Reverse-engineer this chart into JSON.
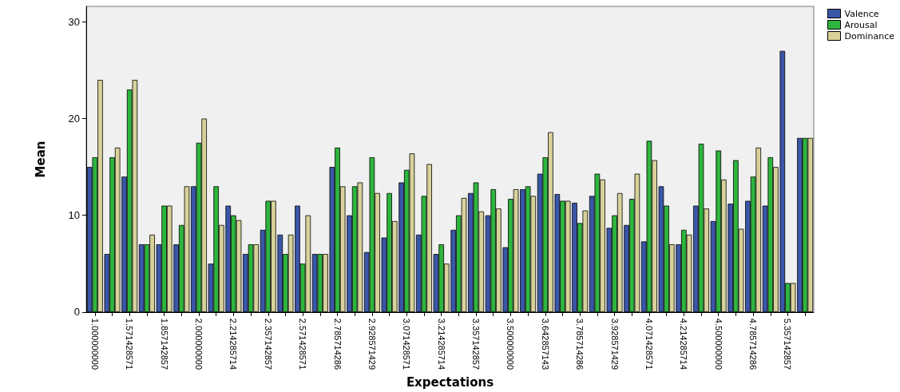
{
  "chart_data": {
    "type": "bar",
    "xlabel": "Expectations",
    "ylabel": "Mean",
    "categories": [
      "1.000000000",
      null,
      "1.571428571",
      null,
      "1.857142857",
      null,
      "2.000000000",
      null,
      "2.214285714",
      null,
      "2.357142857",
      null,
      "2.571428571",
      null,
      "2.785714286",
      null,
      "2.928571429",
      null,
      "3.071428571",
      null,
      "3.214285714",
      null,
      "3.357142857",
      null,
      "3.500000000",
      null,
      "3.642857143",
      null,
      "3.785714286",
      null,
      "3.928571429",
      null,
      "4.071428571",
      null,
      "4.214285714",
      null,
      "4.500000000",
      null,
      "4.785714286",
      null,
      "5.357142857",
      null
    ],
    "series": [
      {
        "name": "Valence",
        "color": "#3a56a8",
        "values": [
          15,
          6,
          14,
          7,
          7,
          7,
          13,
          5,
          11,
          6,
          8.5,
          8,
          11,
          6,
          15,
          10,
          6.2,
          7.7,
          13.4,
          8,
          6,
          8.5,
          12.3,
          10,
          6.7,
          12.7,
          14.3,
          12.2,
          11.3,
          12,
          8.7,
          9,
          7.3,
          13,
          7,
          11,
          9.4,
          11.2,
          11.5,
          11,
          27,
          18
        ]
      },
      {
        "name": "Arousal",
        "color": "#2eb53e",
        "values": [
          16,
          16,
          23,
          7,
          11,
          9,
          17.5,
          13,
          10,
          7,
          11.5,
          6,
          5,
          6,
          17,
          13,
          16,
          12.3,
          14.7,
          12,
          7,
          10,
          13.4,
          12.7,
          11.7,
          13,
          16,
          11.5,
          9.2,
          14.3,
          10,
          11.7,
          17.7,
          11,
          8.5,
          17.4,
          16.7,
          15.7,
          14,
          16,
          3,
          18
        ]
      },
      {
        "name": "Dominance",
        "color": "#d8d29a",
        "values": [
          24,
          17,
          24,
          8,
          11,
          13,
          20,
          9,
          9.5,
          7,
          11.5,
          8,
          10,
          6,
          13,
          13.4,
          12.3,
          9.4,
          16.4,
          15.3,
          5,
          11.8,
          10.4,
          10.7,
          12.7,
          12,
          18.6,
          11.5,
          10.5,
          13.7,
          12.3,
          14.3,
          15.7,
          7,
          8,
          10.7,
          13.7,
          8.6,
          17,
          15,
          3,
          18
        ]
      }
    ],
    "ylim": [
      0,
      31.6
    ],
    "yticks": [
      0,
      10,
      20,
      30
    ],
    "grid": false,
    "legend": "top right"
  }
}
